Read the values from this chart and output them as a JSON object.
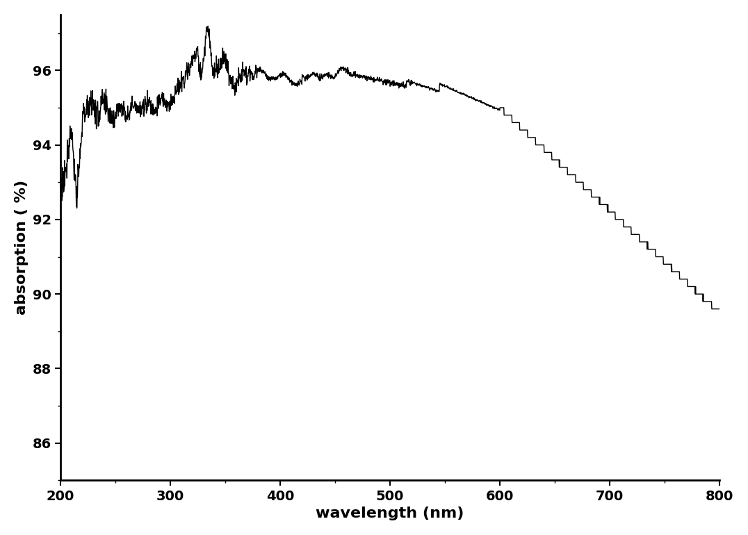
{
  "title": "",
  "xlabel": "wavelength (nm)",
  "ylabel": "absorption ( %)",
  "xlim": [
    200,
    800
  ],
  "ylim": [
    85,
    97.5
  ],
  "line_color": "#000000",
  "background_color": "#ffffff",
  "yticks": [
    86,
    88,
    90,
    92,
    94,
    96
  ],
  "xticks": [
    200,
    300,
    400,
    500,
    600,
    700,
    800
  ],
  "xlabel_fontsize": 16,
  "ylabel_fontsize": 16,
  "tick_fontsize": 14,
  "line_width": 1.0
}
